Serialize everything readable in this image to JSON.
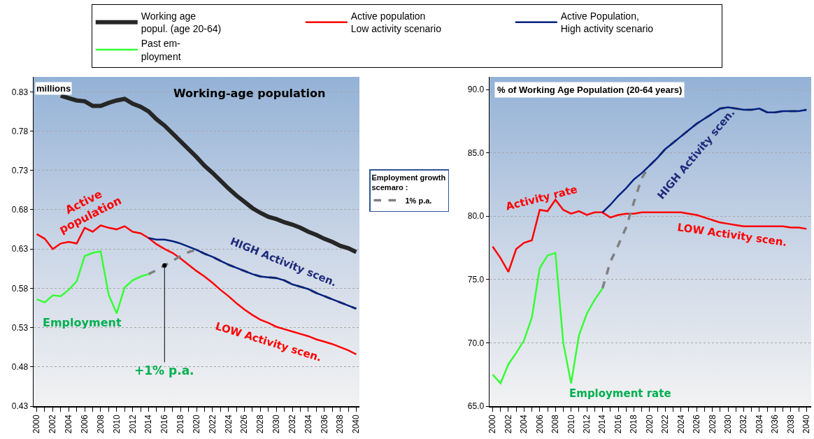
{
  "chart_data": [
    {
      "type": "line",
      "ylabel": "millions",
      "legend": "top",
      "legend_title": "Employment growth\nscemaro :",
      "grid": "y",
      "x": [
        2000,
        2001,
        2002,
        2003,
        2004,
        2005,
        2006,
        2007,
        2008,
        2009,
        2010,
        2011,
        2012,
        2013,
        2014,
        2015,
        2016,
        2017,
        2018,
        2019,
        2020,
        2021,
        2022,
        2023,
        2024,
        2025,
        2026,
        2027,
        2028,
        2029,
        2030,
        2031,
        2032,
        2033,
        2034,
        2035,
        2036,
        2037,
        2038,
        2039,
        2040
      ],
      "xlim": [
        1999.6,
        2040.4
      ],
      "xticks": [
        2000,
        {
          "value": 2001,
          "label": null
        },
        2002,
        {
          "value": 2003,
          "label": null
        },
        2004,
        {
          "value": 2005,
          "label": null
        },
        2006,
        {
          "value": 2007,
          "label": null
        },
        2008,
        {
          "value": 2009,
          "label": null
        },
        2010,
        {
          "value": 2011,
          "label": null
        },
        2012,
        {
          "value": 2013,
          "label": null
        },
        2014,
        {
          "value": 2015,
          "label": null
        },
        2016,
        {
          "value": 2017,
          "label": null
        },
        2018,
        {
          "value": 2019,
          "label": null
        },
        2020,
        {
          "value": 2021,
          "label": null
        },
        2022,
        {
          "value": 2023,
          "label": null
        },
        2024,
        {
          "value": 2025,
          "label": null
        },
        2026,
        {
          "value": 2027,
          "label": null
        },
        2028,
        {
          "value": 2029,
          "label": null
        },
        2030,
        {
          "value": 2031,
          "label": null
        },
        2032,
        {
          "value": 2033,
          "label": null
        },
        2034,
        {
          "value": 2035,
          "label": null
        },
        2036,
        {
          "value": 2037,
          "label": null
        },
        2038,
        {
          "value": 2039,
          "label": null
        },
        2040
      ],
      "ylim": [
        0.43,
        0.849
      ],
      "yticks": [
        0.43,
        0.48,
        0.53,
        0.58,
        0.63,
        0.68,
        0.73,
        0.78,
        0.83
      ],
      "series": [
        {
          "name": "Working age\npopul. (age 20-64)",
          "color": "#262626",
          "values": [
            null,
            null,
            null,
            0.825,
            0.822,
            0.819,
            0.818,
            0.812,
            0.812,
            0.816,
            0.819,
            0.821,
            0.815,
            0.811,
            0.805,
            0.795,
            0.787,
            0.777,
            0.767,
            0.757,
            0.747,
            0.736,
            0.727,
            0.717,
            0.707,
            0.698,
            0.69,
            0.682,
            0.676,
            0.671,
            0.668,
            0.664,
            0.661,
            0.657,
            0.652,
            0.648,
            0.643,
            0.639,
            0.634,
            0.631,
            0.626
          ]
        },
        {
          "name": "Active population\nLow activity scenario",
          "color": "#ff0000",
          "values": [
            0.649,
            0.643,
            0.63,
            0.637,
            0.639,
            0.637,
            0.657,
            0.652,
            0.66,
            0.657,
            0.655,
            0.659,
            0.652,
            0.65,
            0.644,
            0.636,
            0.63,
            0.625,
            0.618,
            0.61,
            0.602,
            0.595,
            0.587,
            0.578,
            0.57,
            0.561,
            0.553,
            0.546,
            0.54,
            0.536,
            0.531,
            0.528,
            0.525,
            0.522,
            0.519,
            0.515,
            0.512,
            0.509,
            0.505,
            0.501,
            0.496
          ]
        },
        {
          "name": "1% p.a.",
          "color": "#808080",
          "line_style": "dashed",
          "x": [
            2014,
            2015,
            2016,
            2017,
            2018,
            2019,
            2020,
            2021,
            2022,
            2023,
            2024,
            2025,
            2026,
            2027,
            2028,
            2029,
            2030,
            2031,
            2032,
            2033,
            2034,
            2035,
            2036,
            2037,
            2038,
            2039,
            2040
          ],
          "values": [
            0.598,
            0.603,
            0.609,
            0.615,
            0.621,
            0.626,
            0.629,
            0.624,
            0.62,
            0.615,
            0.61,
            0.606,
            0.602,
            0.598,
            0.595,
            0.594,
            0.593,
            0.59,
            0.585,
            0.582,
            0.579,
            0.574,
            0.57,
            0.566,
            0.562,
            0.558,
            0.554
          ]
        },
        {
          "name": "Active Population,\nHigh activity scenario",
          "color": "#002080",
          "x": [
            2014,
            2015,
            2016,
            2017,
            2018,
            2019,
            2020,
            2021,
            2022,
            2023,
            2024,
            2025,
            2026,
            2027,
            2028,
            2029,
            2030,
            2031,
            2032,
            2033,
            2034,
            2035,
            2036,
            2037,
            2038,
            2039,
            2040
          ],
          "values": [
            0.644,
            0.642,
            0.642,
            0.64,
            0.637,
            0.633,
            0.629,
            0.624,
            0.62,
            0.615,
            0.61,
            0.606,
            0.602,
            0.598,
            0.595,
            0.594,
            0.593,
            0.59,
            0.585,
            0.582,
            0.579,
            0.574,
            0.57,
            0.566,
            0.562,
            0.558,
            0.554
          ]
        },
        {
          "name": "Past em-\nployment",
          "color": "#33ff33",
          "x": [
            2000,
            2001,
            2002,
            2003,
            2004,
            2005,
            2006,
            2007,
            2008,
            2009,
            2010,
            2011,
            2012,
            2013,
            2014
          ],
          "values": [
            0.566,
            0.562,
            0.571,
            0.57,
            0.578,
            0.589,
            0.621,
            0.625,
            0.627,
            0.572,
            0.548,
            0.581,
            0.59,
            0.595,
            0.598
          ]
        }
      ],
      "annotations": [
        "Working-age population",
        "Active\npopulation",
        "HIGH Activity scen.",
        "LOW Activity scen.",
        "Employment",
        {
          "text": "+1% p.a.",
          "x": 2016,
          "y": 0.609
        }
      ]
    },
    {
      "type": "line",
      "ylabel": "% of Working Age Population (20-64 years)",
      "grid": "y",
      "x": [
        2000,
        2001,
        2002,
        2003,
        2004,
        2005,
        2006,
        2007,
        2008,
        2009,
        2010,
        2011,
        2012,
        2013,
        2014,
        2015,
        2016,
        2017,
        2018,
        2019,
        2020,
        2021,
        2022,
        2023,
        2024,
        2025,
        2026,
        2027,
        2028,
        2029,
        2030,
        2031,
        2032,
        2033,
        2034,
        2035,
        2036,
        2037,
        2038,
        2039,
        2040
      ],
      "xlim": [
        1999.6,
        2040.6
      ],
      "xticks": [
        2000,
        {
          "value": 2001,
          "label": null
        },
        2002,
        {
          "value": 2003,
          "label": null
        },
        2004,
        {
          "value": 2005,
          "label": null
        },
        2006,
        {
          "value": 2007,
          "label": null
        },
        2008,
        {
          "value": 2009,
          "label": null
        },
        2010,
        {
          "value": 2011,
          "label": null
        },
        2012,
        {
          "value": 2013,
          "label": null
        },
        2014,
        {
          "value": 2015,
          "label": null
        },
        2016,
        {
          "value": 2017,
          "label": null
        },
        2018,
        {
          "value": 2019,
          "label": null
        },
        2020,
        {
          "value": 2021,
          "label": null
        },
        2022,
        {
          "value": 2023,
          "label": null
        },
        2024,
        {
          "value": 2025,
          "label": null
        },
        2026,
        {
          "value": 2027,
          "label": null
        },
        2028,
        {
          "value": 2029,
          "label": null
        },
        2030,
        {
          "value": 2031,
          "label": null
        },
        2032,
        {
          "value": 2033,
          "label": null
        },
        2034,
        {
          "value": 2035,
          "label": null
        },
        2036,
        {
          "value": 2037,
          "label": null
        },
        2038,
        {
          "value": 2039,
          "label": null
        },
        2040
      ],
      "ylim": [
        65,
        91
      ],
      "yticks": [
        {
          "value": 65,
          "label": "65.0"
        },
        {
          "value": 70,
          "label": "70.0"
        },
        {
          "value": 75,
          "label": "75.0"
        },
        {
          "value": 80,
          "label": "80.0"
        },
        {
          "value": 85,
          "label": "85.0"
        },
        {
          "value": 90,
          "label": "90.0"
        }
      ],
      "series": [
        {
          "color": "#ff0000",
          "values": [
            77.6,
            76.7,
            75.6,
            77.4,
            77.9,
            78.1,
            80.5,
            80.4,
            81.3,
            80.5,
            80.2,
            80.4,
            80.1,
            80.3,
            80.3,
            79.9,
            80.1,
            80.2,
            80.2,
            80.3,
            80.3,
            80.3,
            80.3,
            80.3,
            80.3,
            80.2,
            80.1,
            79.9,
            79.7,
            79.5,
            79.4,
            79.3,
            79.2,
            79.2,
            79.2,
            79.2,
            79.2,
            79.2,
            79.1,
            79.1,
            79.0
          ]
        },
        {
          "color": "#808080",
          "line_style": "dashed",
          "x": [
            2014,
            2015,
            2016,
            2017,
            2018,
            2019,
            2020,
            2021,
            2022,
            2023,
            2024,
            2025,
            2026,
            2027,
            2028,
            2029,
            2030,
            2031,
            2032,
            2033,
            2034,
            2035,
            2036,
            2037,
            2038,
            2039,
            2040
          ],
          "values": [
            74.3,
            76.4,
            77.7,
            79.1,
            81.1,
            83.0,
            84.0,
            84.6,
            85.3,
            85.8,
            86.3,
            86.8,
            87.3,
            87.7,
            88.1,
            88.5,
            88.6,
            88.5,
            88.4,
            88.4,
            88.5,
            88.2,
            88.2,
            88.3,
            88.3,
            88.3,
            88.4
          ]
        },
        {
          "color": "#002080",
          "x": [
            2014,
            2015,
            2016,
            2017,
            2018,
            2019,
            2020,
            2021,
            2022,
            2023,
            2024,
            2025,
            2026,
            2027,
            2028,
            2029,
            2030,
            2031,
            2032,
            2033,
            2034,
            2035,
            2036,
            2037,
            2038,
            2039,
            2040
          ],
          "values": [
            80.3,
            80.9,
            81.6,
            82.2,
            82.9,
            83.4,
            84.0,
            84.6,
            85.3,
            85.8,
            86.3,
            86.8,
            87.3,
            87.7,
            88.1,
            88.5,
            88.6,
            88.5,
            88.4,
            88.4,
            88.5,
            88.2,
            88.2,
            88.3,
            88.3,
            88.3,
            88.4
          ]
        },
        {
          "color": "#33ff33",
          "x": [
            2000,
            2001,
            2002,
            2003,
            2004,
            2005,
            2006,
            2007,
            2008,
            2009,
            2010,
            2011,
            2012,
            2013,
            2014
          ],
          "values": [
            67.5,
            66.8,
            68.3,
            69.2,
            70.2,
            72.0,
            75.9,
            76.9,
            77.1,
            70.0,
            66.8,
            70.6,
            72.3,
            73.4,
            74.3
          ]
        }
      ],
      "annotations": [
        "Activity rate",
        "HIGH Activity scen.",
        "LOW Activity scen.",
        "Employment rate"
      ]
    }
  ]
}
